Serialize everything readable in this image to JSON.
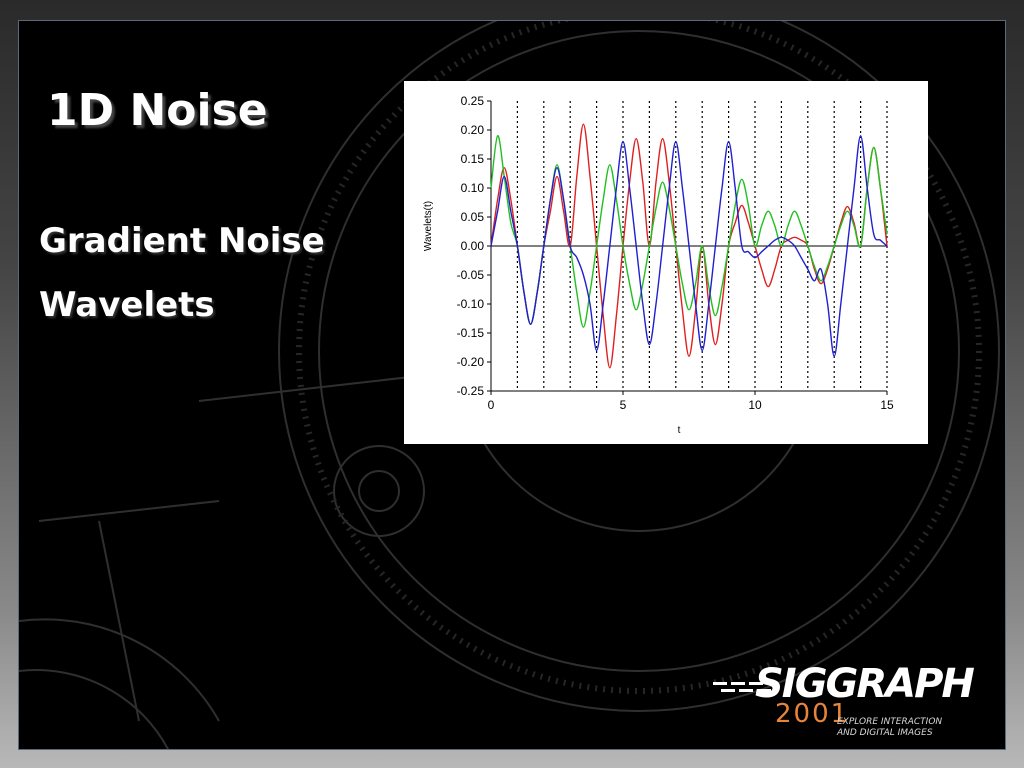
{
  "slide": {
    "title": "1D Noise",
    "bullets": [
      "Gradient Noise",
      "Wavelets"
    ]
  },
  "logo": {
    "wordmark": "SIGGRAPH",
    "year": "2001",
    "tagline_line1": "EXPLORE INTERACTION",
    "tagline_line2": "AND DIGITAL IMAGES",
    "year_color": "#e8833a"
  },
  "chart_data": {
    "type": "line",
    "title": "",
    "xlabel": "t",
    "ylabel": "Wavelets(t)",
    "xlim": [
      0,
      15
    ],
    "ylim": [
      -0.25,
      0.25
    ],
    "x_ticks": [
      0,
      5,
      10,
      15
    ],
    "y_ticks": [
      "0.25",
      "0.20",
      "0.15",
      "0.10",
      "0.05",
      "0.00",
      "-0.05",
      "-0.10",
      "-0.15",
      "-0.20",
      "-0.25"
    ],
    "vertical_dotted_lines_at": [
      1,
      2,
      3,
      4,
      5,
      6,
      7,
      8,
      9,
      10,
      11,
      12,
      13,
      14,
      15
    ],
    "grid": false,
    "series": [
      {
        "color": "#e02020",
        "x": [
          0,
          0.25,
          0.5,
          0.75,
          1,
          1.25,
          1.5,
          1.75,
          2,
          2.25,
          2.5,
          2.75,
          3,
          3.25,
          3.5,
          3.75,
          4,
          4.25,
          4.5,
          4.75,
          5,
          5.25,
          5.5,
          5.75,
          6,
          6.25,
          6.5,
          6.75,
          7,
          7.25,
          7.5,
          7.75,
          8,
          8.25,
          8.5,
          8.75,
          9,
          9.25,
          9.5,
          9.75,
          10,
          10.25,
          10.5,
          10.75,
          11,
          11.25,
          11.5,
          11.75,
          12,
          12.25,
          12.5,
          12.75,
          13,
          13.25,
          13.5,
          13.75,
          14,
          14.25,
          14.5,
          14.75,
          15
        ],
        "y": [
          0,
          0.08,
          0.135,
          0.08,
          0,
          -0.08,
          -0.135,
          -0.08,
          0,
          0.06,
          0.12,
          0.06,
          0,
          0.12,
          0.21,
          0.12,
          0,
          -0.12,
          -0.21,
          -0.12,
          0,
          0.11,
          0.185,
          0.11,
          0,
          0.11,
          0.185,
          0.11,
          0,
          -0.11,
          -0.19,
          -0.11,
          0,
          -0.1,
          -0.17,
          -0.1,
          0,
          0.04,
          0.07,
          0.04,
          0,
          -0.04,
          -0.07,
          -0.04,
          0,
          0.01,
          0.015,
          0.01,
          0,
          -0.04,
          -0.065,
          -0.04,
          0,
          0.04,
          0.068,
          0.04,
          0,
          0.1,
          0.17,
          0.1,
          0
        ]
      },
      {
        "color": "#20c020",
        "x": [
          0,
          0.25,
          0.5,
          0.75,
          1,
          1.25,
          1.5,
          1.75,
          2,
          2.25,
          2.5,
          2.75,
          3,
          3.25,
          3.5,
          3.75,
          4,
          4.25,
          4.5,
          4.75,
          5,
          5.25,
          5.5,
          5.75,
          6,
          6.25,
          6.5,
          6.75,
          7,
          7.25,
          7.5,
          7.75,
          8,
          8.25,
          8.5,
          8.75,
          9,
          9.25,
          9.5,
          9.75,
          10,
          10.25,
          10.5,
          10.75,
          11,
          11.25,
          11.5,
          11.75,
          12,
          12.25,
          12.5,
          12.75,
          13,
          13.25,
          13.5,
          13.75,
          14,
          14.25,
          14.5,
          14.75,
          15
        ],
        "y": [
          0.1,
          0.19,
          0.12,
          0.04,
          0,
          -0.08,
          -0.135,
          -0.08,
          0,
          0.08,
          0.14,
          0.08,
          0,
          -0.08,
          -0.14,
          -0.08,
          0,
          0.08,
          0.14,
          0.08,
          0,
          -0.065,
          -0.11,
          -0.065,
          0,
          0.065,
          0.11,
          0.065,
          0,
          -0.065,
          -0.11,
          -0.065,
          0,
          -0.07,
          -0.12,
          -0.07,
          0,
          0.07,
          0.115,
          0.07,
          0,
          0.035,
          0.06,
          0.035,
          0,
          0.035,
          0.06,
          0.035,
          0,
          -0.035,
          -0.06,
          -0.035,
          0,
          0.035,
          0.06,
          0.035,
          0,
          0.1,
          0.17,
          0.1,
          0.02
        ]
      },
      {
        "color": "#2020d0",
        "x": [
          0,
          0.25,
          0.5,
          0.75,
          1,
          1.25,
          1.5,
          1.75,
          2,
          2.25,
          2.5,
          2.75,
          3,
          3.25,
          3.5,
          3.75,
          4,
          4.25,
          4.5,
          4.75,
          5,
          5.25,
          5.5,
          5.75,
          6,
          6.25,
          6.5,
          6.75,
          7,
          7.25,
          7.5,
          7.75,
          8,
          8.25,
          8.5,
          8.75,
          9,
          9.25,
          9.5,
          9.75,
          10,
          10.25,
          10.5,
          10.75,
          11,
          11.25,
          11.5,
          11.75,
          12,
          12.25,
          12.5,
          12.75,
          13,
          13.25,
          13.5,
          13.75,
          14,
          14.25,
          14.5,
          14.75,
          15
        ],
        "y": [
          0,
          0.06,
          0.12,
          0.06,
          0,
          -0.08,
          -0.135,
          -0.08,
          0,
          0.08,
          0.135,
          0.08,
          0,
          -0.02,
          -0.05,
          -0.1,
          -0.18,
          -0.1,
          0,
          0.1,
          0.18,
          0.1,
          0,
          -0.1,
          -0.17,
          -0.1,
          0,
          0.1,
          0.18,
          0.1,
          0,
          -0.1,
          -0.18,
          -0.1,
          0,
          0.1,
          0.18,
          0.1,
          0,
          -0.01,
          -0.02,
          -0.01,
          0,
          0.01,
          0.015,
          0.01,
          0,
          -0.02,
          -0.04,
          -0.06,
          -0.04,
          -0.1,
          -0.19,
          -0.1,
          0,
          0.1,
          0.19,
          0.1,
          0.02,
          0.01,
          0
        ]
      }
    ]
  }
}
